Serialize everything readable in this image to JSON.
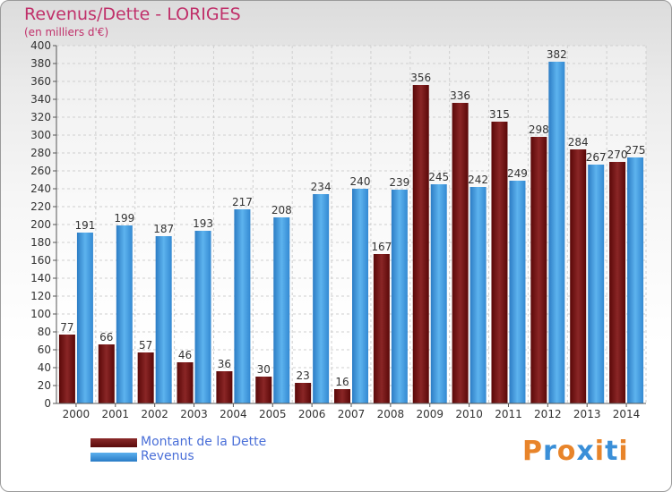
{
  "header": {
    "title": "Revenus/Dette - LORIGES",
    "subtitle": "(en milliers d'€)"
  },
  "legend": {
    "debt_label": "Montant de la Dette",
    "revenue_label": "Revenus"
  },
  "brand": {
    "text": "Proxiti",
    "colors": [
      "#e8842a",
      "#3a8fd8",
      "#e8842a",
      "#3a8fd8",
      "#e8842a",
      "#3a8fd8",
      "#e8842a"
    ]
  },
  "colors": {
    "debt": "#6e1414",
    "revenue": "#3d9ae0",
    "title": "#c0306a",
    "legend_text": "#4a6fd8"
  },
  "chart_data": {
    "type": "bar",
    "title": "Revenus/Dette - LORIGES",
    "ylabel": "(en milliers d'€)",
    "xlabel": "",
    "categories": [
      "2000",
      "2001",
      "2002",
      "2003",
      "2004",
      "2005",
      "2006",
      "2007",
      "2008",
      "2009",
      "2010",
      "2011",
      "2012",
      "2013",
      "2014"
    ],
    "series": [
      {
        "name": "Montant de la Dette",
        "values": [
          77,
          66,
          57,
          46,
          36,
          30,
          23,
          16,
          167,
          356,
          336,
          315,
          298,
          284,
          270
        ]
      },
      {
        "name": "Revenus",
        "values": [
          191,
          199,
          187,
          193,
          217,
          208,
          234,
          240,
          239,
          245,
          242,
          249,
          382,
          267,
          275
        ]
      }
    ],
    "ylim": [
      0,
      400
    ],
    "ytick_step": 20,
    "grid": true,
    "legend_position": "bottom-left"
  }
}
